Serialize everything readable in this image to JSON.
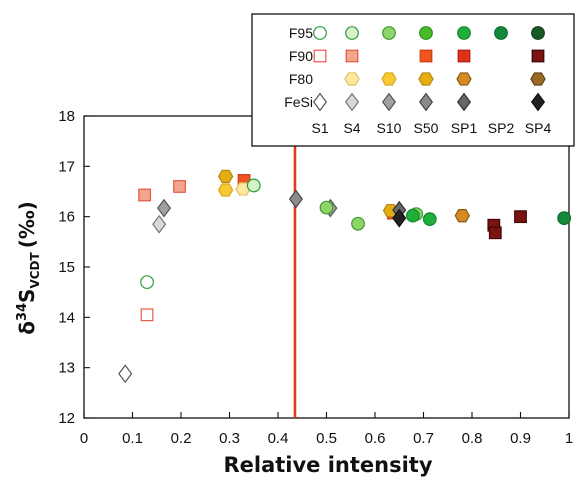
{
  "chart_data": {
    "type": "scatter",
    "xlabel": "Relative intensity",
    "ylabel": {
      "delta": "δ",
      "superscript": "34",
      "main": "S",
      "subscript": "VCDT",
      "unit": "(‰)"
    },
    "xlim": [
      0,
      1
    ],
    "ylim": [
      12,
      18
    ],
    "x_ticks": [
      "0",
      "0.1",
      "0.2",
      "0.3",
      "0.4",
      "0.5",
      "0.6",
      "0.7",
      "0.8",
      "0.9",
      "1"
    ],
    "y_ticks": [
      "12",
      "13",
      "14",
      "15",
      "16",
      "17",
      "18"
    ],
    "grid": false,
    "vertical_line": {
      "x": 0.435,
      "color": "#e03a22"
    },
    "legend": {
      "placement": "top-right",
      "groups": [
        {
          "label": "F95",
          "marker": "circle"
        },
        {
          "label": "F90",
          "marker": "square"
        },
        {
          "label": "F80",
          "marker": "hexagon"
        },
        {
          "label": "FeSi",
          "marker": "diamond"
        }
      ],
      "stages": [
        "S1",
        "S4",
        "S10",
        "S50",
        "SP1",
        "SP2",
        "SP4"
      ],
      "swatches": [
        {
          "group": "F95",
          "stage": "S1",
          "fill": "#ffffff",
          "stroke": "#2a9d3a"
        },
        {
          "group": "F95",
          "stage": "S4",
          "fill": "#d8f2c8",
          "stroke": "#2a9d3a"
        },
        {
          "group": "F95",
          "stage": "S10",
          "fill": "#8fd468",
          "stroke": "#3e9a30"
        },
        {
          "group": "F95",
          "stage": "S50",
          "fill": "#4cbb2a",
          "stroke": "#2f8f1e"
        },
        {
          "group": "F95",
          "stage": "SP1",
          "fill": "#1fae3c",
          "stroke": "#178a2e"
        },
        {
          "group": "F95",
          "stage": "SP2",
          "fill": "#14893a",
          "stroke": "#0f6b2c"
        },
        {
          "group": "F95",
          "stage": "SP4",
          "fill": "#185a26",
          "stroke": "#0f3d19"
        },
        {
          "group": "F90",
          "stage": "S1",
          "fill": "#ffffff",
          "stroke": "#e85a48"
        },
        {
          "group": "F90",
          "stage": "S4",
          "fill": "#f5a48e",
          "stroke": "#e05a40"
        },
        {
          "group": "F90",
          "stage": "S50",
          "fill": "#f0551e",
          "stroke": "#c84214"
        },
        {
          "group": "F90",
          "stage": "SP1",
          "fill": "#e0301a",
          "stroke": "#b02010"
        },
        {
          "group": "F90",
          "stage": "SP4",
          "fill": "#7a1410",
          "stroke": "#3f0707"
        },
        {
          "group": "F80",
          "stage": "S4",
          "fill": "#fde9a0",
          "stroke": "#e2c060"
        },
        {
          "group": "F80",
          "stage": "S10",
          "fill": "#f7c935",
          "stroke": "#d9a614"
        },
        {
          "group": "F80",
          "stage": "S50",
          "fill": "#e6ad12",
          "stroke": "#b8870b"
        },
        {
          "group": "F80",
          "stage": "SP1",
          "fill": "#d48a25",
          "stroke": "#8a5a10"
        },
        {
          "group": "F80",
          "stage": "SP4",
          "fill": "#9a6a22",
          "stroke": "#5e3e10"
        },
        {
          "group": "FeSi",
          "stage": "S1",
          "fill": "#ffffff",
          "stroke": "#555555"
        },
        {
          "group": "FeSi",
          "stage": "S4",
          "fill": "#d9d9d9",
          "stroke": "#777777"
        },
        {
          "group": "FeSi",
          "stage": "S10",
          "fill": "#a0a0a0",
          "stroke": "#555555"
        },
        {
          "group": "FeSi",
          "stage": "S50",
          "fill": "#8a8a8a",
          "stroke": "#444444"
        },
        {
          "group": "FeSi",
          "stage": "SP1",
          "fill": "#666666",
          "stroke": "#333333"
        },
        {
          "group": "FeSi",
          "stage": "SP4",
          "fill": "#222222",
          "stroke": "#111111"
        }
      ]
    },
    "points": [
      {
        "group": "FeSi",
        "stage": "S1",
        "x": 0.085,
        "y": 12.88
      },
      {
        "group": "F90",
        "stage": "S1",
        "x": 0.13,
        "y": 14.05
      },
      {
        "group": "F95",
        "stage": "S1",
        "x": 0.13,
        "y": 14.7
      },
      {
        "group": "FeSi",
        "stage": "S4",
        "x": 0.155,
        "y": 15.85
      },
      {
        "group": "FeSi",
        "stage": "S10",
        "x": 0.165,
        "y": 16.17
      },
      {
        "group": "F90",
        "stage": "S4",
        "x": 0.125,
        "y": 16.43
      },
      {
        "group": "F90",
        "stage": "S4",
        "x": 0.197,
        "y": 16.6
      },
      {
        "group": "F80",
        "stage": "S10",
        "x": 0.292,
        "y": 16.53
      },
      {
        "group": "F80",
        "stage": "S50",
        "x": 0.292,
        "y": 16.8
      },
      {
        "group": "F90",
        "stage": "S50",
        "x": 0.33,
        "y": 16.72
      },
      {
        "group": "F80",
        "stage": "S4",
        "x": 0.328,
        "y": 16.55
      },
      {
        "group": "F95",
        "stage": "S4",
        "x": 0.35,
        "y": 16.62
      },
      {
        "group": "FeSi",
        "stage": "S50",
        "x": 0.437,
        "y": 16.35
      },
      {
        "group": "FeSi",
        "stage": "S10",
        "x": 0.508,
        "y": 16.17
      },
      {
        "group": "F95",
        "stage": "S10",
        "x": 0.5,
        "y": 16.18
      },
      {
        "group": "F95",
        "stage": "S10",
        "x": 0.565,
        "y": 15.86
      },
      {
        "group": "F90",
        "stage": "S50",
        "x": 0.638,
        "y": 16.07
      },
      {
        "group": "F80",
        "stage": "S50",
        "x": 0.632,
        "y": 16.12
      },
      {
        "group": "FeSi",
        "stage": "SP1",
        "x": 0.65,
        "y": 16.13
      },
      {
        "group": "FeSi",
        "stage": "SP4",
        "x": 0.65,
        "y": 15.97
      },
      {
        "group": "F95",
        "stage": "S10",
        "x": 0.685,
        "y": 16.05
      },
      {
        "group": "F95",
        "stage": "SP1",
        "x": 0.678,
        "y": 16.02
      },
      {
        "group": "F95",
        "stage": "SP1",
        "x": 0.713,
        "y": 15.95
      },
      {
        "group": "F80",
        "stage": "SP1",
        "x": 0.78,
        "y": 16.02
      },
      {
        "group": "F90",
        "stage": "SP4",
        "x": 0.845,
        "y": 15.83
      },
      {
        "group": "F90",
        "stage": "SP4",
        "x": 0.848,
        "y": 15.68
      },
      {
        "group": "F90",
        "stage": "SP4",
        "x": 0.9,
        "y": 16.0
      },
      {
        "group": "F95",
        "stage": "SP2",
        "x": 0.99,
        "y": 15.97
      }
    ]
  }
}
